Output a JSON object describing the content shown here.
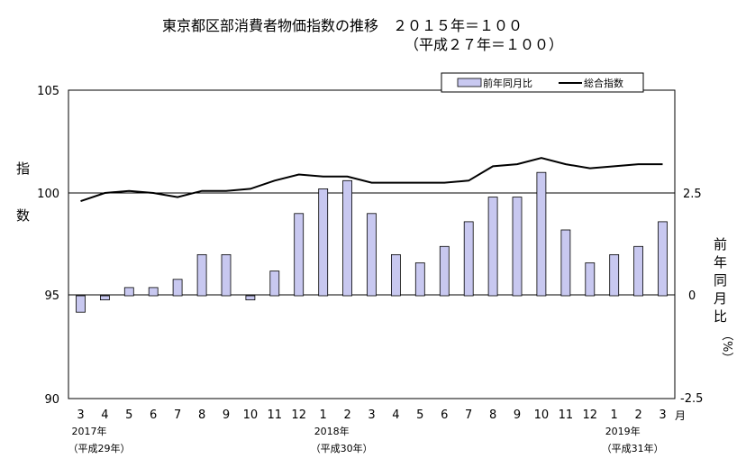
{
  "chart_data": {
    "type": "bar+line",
    "title": "東京都区部消費者物価指数の推移　２０１５年＝１００",
    "subtitle": "（平成２７年＝１００）",
    "ylabel_left": [
      "指",
      "数"
    ],
    "ylabel_right": [
      "前",
      "年",
      "同",
      "月",
      "比",
      "（%）"
    ],
    "xunit": "月",
    "categories": [
      "3",
      "4",
      "5",
      "6",
      "7",
      "8",
      "9",
      "10",
      "11",
      "12",
      "1",
      "2",
      "3",
      "4",
      "5",
      "6",
      "7",
      "8",
      "9",
      "10",
      "11",
      "12",
      "1",
      "2",
      "3"
    ],
    "year_labels": [
      {
        "index": 0,
        "year": "2017年",
        "era": "（平成29年）"
      },
      {
        "index": 10,
        "year": "2018年",
        "era": "（平成30年）"
      },
      {
        "index": 22,
        "year": "2019年",
        "era": "（平成31年）"
      }
    ],
    "ylim_left": [
      90,
      105
    ],
    "ylim_right": [
      -2.5,
      5
    ],
    "yticks_left": [
      "105",
      "100",
      "95",
      "90"
    ],
    "yticks_right": [
      "2.5",
      "0",
      "-2.5"
    ],
    "legend_position": "top-right",
    "series": [
      {
        "name": "前年同月比",
        "type": "bar",
        "axis": "right",
        "color": "#c8c8f0",
        "values": [
          -0.4,
          -0.1,
          0.2,
          0.2,
          0.4,
          1.0,
          1.0,
          -0.1,
          0.6,
          2.0,
          2.6,
          2.8,
          2.0,
          1.0,
          0.8,
          1.2,
          1.8,
          2.4,
          2.4,
          3.0,
          1.6,
          0.8,
          1.0,
          1.2,
          1.8
        ]
      },
      {
        "name": "総合指数",
        "type": "line",
        "axis": "left",
        "color": "#000000",
        "values": [
          99.6,
          100.0,
          100.1,
          100.0,
          99.8,
          100.1,
          100.1,
          100.2,
          100.6,
          100.9,
          100.8,
          100.8,
          100.5,
          100.5,
          100.5,
          100.5,
          100.6,
          101.3,
          101.4,
          101.7,
          101.4,
          101.2,
          101.3,
          101.4,
          101.4
        ]
      }
    ]
  }
}
